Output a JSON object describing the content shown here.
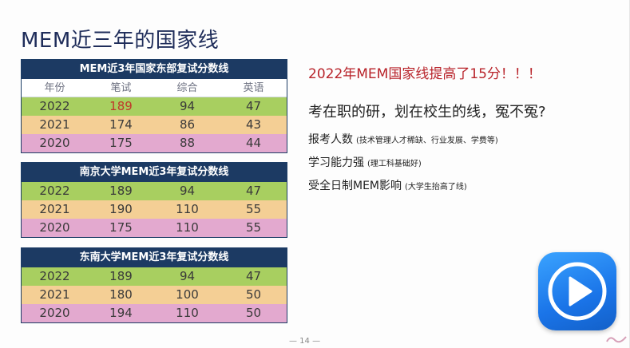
{
  "slide": {
    "title": "MEM近三年的国家线",
    "page_number": "— 14 —"
  },
  "tables": [
    {
      "title": "MEM近3年国家东部复试分数线",
      "headers": [
        "年份",
        "笔试",
        "综合",
        "英语"
      ],
      "rows": [
        [
          "2022",
          "189",
          "94",
          "47"
        ],
        [
          "2021",
          "174",
          "86",
          "43"
        ],
        [
          "2020",
          "175",
          "88",
          "44"
        ]
      ]
    },
    {
      "title": "南京大学MEM近3年复试分数线",
      "rows": [
        [
          "2022",
          "189",
          "94",
          "47"
        ],
        [
          "2021",
          "190",
          "110",
          "55"
        ],
        [
          "2020",
          "175",
          "110",
          "55"
        ]
      ]
    },
    {
      "title": "东南大学MEM近3年复试分数线",
      "rows": [
        [
          "2022",
          "189",
          "94",
          "47"
        ],
        [
          "2021",
          "180",
          "100",
          "50"
        ],
        [
          "2020",
          "194",
          "110",
          "50"
        ]
      ]
    }
  ],
  "text": {
    "headline": "2022年MEM国家线提高了15分！！！",
    "subhead": "考在职的研，划在校生的线，冤不冤?",
    "points": [
      {
        "main": "报考人数",
        "note": "(技术管理人才稀缺、行业发展、学费等)"
      },
      {
        "main": "学习能力强",
        "note": "(理工科基础好)"
      },
      {
        "main": "受全日制MEM影响",
        "note": "(大学生抬高了线)"
      }
    ]
  },
  "colors": {
    "row_2022": "#a8cf60",
    "row_2021": "#f4cf95",
    "row_2020": "#e3a9cf",
    "table_header": "#1c3a63",
    "headline": "#b8232a",
    "play_button": "#1a74e8"
  },
  "icons": {
    "play_button": "play-icon"
  }
}
